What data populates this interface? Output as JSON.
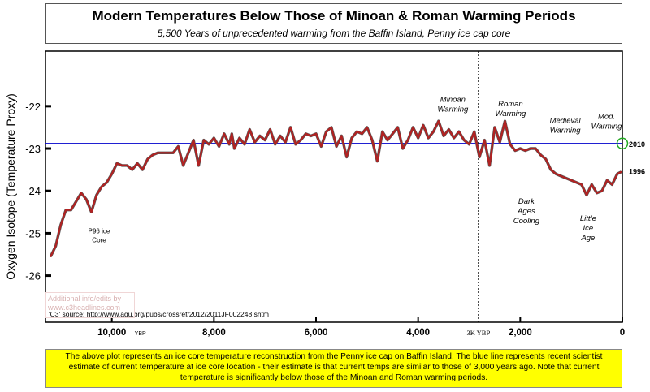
{
  "title": "Modern Temperatures Below Those of Minoan & Roman Warming Periods",
  "subtitle": "5,500 Years of unprecedented warming from the Baffin Island, Penny ice cap core",
  "footer_text": "The above plot represents an ice core temperature reconstruction from the Penny ice cap on Baffin Island. The blue line represents recent scientist estimate of current temperature at ice core location - their estimate is that current temps are similar to those of 3,000 years ago. Note that current temperature is significantly below those of the Minoan and Roman warming periods.",
  "watermark_text": "Additional info/edits by www.c3headlines.com",
  "colors": {
    "series": "#b22222",
    "reference_line": "#0000cc",
    "marker": "#22aa22",
    "footer_bg": "#ffff00"
  },
  "chart_data": {
    "type": "line",
    "title": "Modern Temperatures Below Those of Minoan & Roman Warming Periods",
    "subtitle": "5,500 Years of unprecedented warming from the Baffin Island, Penny ice cap core",
    "xlabel": "",
    "ylabel": "Oxygen Isotope (Temperature Proxy)",
    "x_unit_label": "YBP",
    "x_reversed": true,
    "xlim": [
      11300,
      0
    ],
    "ylim": [
      -27.1,
      -20.7
    ],
    "x_ticks": [
      {
        "value": 10000,
        "label": "10,000"
      },
      {
        "value": 8000,
        "label": "8,000"
      },
      {
        "value": 6000,
        "label": "6,000"
      },
      {
        "value": 4000,
        "label": "4,000"
      },
      {
        "value": 2000,
        "label": "2,000"
      },
      {
        "value": 0,
        "label": "0"
      }
    ],
    "y_ticks": [
      {
        "value": -22,
        "label": "-22"
      },
      {
        "value": -23,
        "label": "-23"
      },
      {
        "value": -24,
        "label": "-24"
      },
      {
        "value": -25,
        "label": "-25"
      },
      {
        "value": -26,
        "label": "-26"
      }
    ],
    "grid": false,
    "reference_line": {
      "y": -22.88,
      "label": "2010"
    },
    "vertical_marker": {
      "x": 2820,
      "label": "3K YBP"
    },
    "end_label": "1996",
    "source_note": "'C3' source: http://www.agu.org/pubs/crossref/2012/2011JF002248.shtm",
    "annotations": [
      {
        "text": "Minoan Warming",
        "x": 3320,
        "y": -21.9
      },
      {
        "text": "Roman Warming",
        "x": 2190,
        "y": -22.0
      },
      {
        "text": "Medieval Warming",
        "x": 1120,
        "y": -22.4
      },
      {
        "text": "Mod. Warming",
        "x": 310,
        "y": -22.3
      },
      {
        "text": "Dark Ages Cooling",
        "x": 1880,
        "y": -24.3
      },
      {
        "text": "Little Ice Age",
        "x": 670,
        "y": -24.7
      },
      {
        "text": "P96 ice Core",
        "x": 10250,
        "y": -25.0
      }
    ],
    "series": [
      {
        "x": [
          11200,
          11100,
          11000,
          10900,
          10800,
          10700,
          10600,
          10500,
          10400,
          10300,
          10200,
          10100,
          10000,
          9900,
          9800,
          9700,
          9600,
          9500,
          9400,
          9300,
          9200,
          9100,
          9000,
          8900,
          8800,
          8700,
          8600,
          8500,
          8400,
          8300,
          8200,
          8100,
          8000,
          7900,
          7800,
          7700,
          7650,
          7600,
          7500,
          7400,
          7300,
          7200,
          7100,
          7000,
          6900,
          6800,
          6700,
          6600,
          6500,
          6400,
          6300,
          6200,
          6100,
          6000,
          5900,
          5800,
          5700,
          5600,
          5500,
          5400,
          5300,
          5200,
          5100,
          5000,
          4900,
          4800,
          4700,
          4600,
          4500,
          4400,
          4300,
          4200,
          4100,
          4000,
          3900,
          3800,
          3700,
          3600,
          3500,
          3400,
          3300,
          3200,
          3100,
          3000,
          2900,
          2800,
          2700,
          2600,
          2500,
          2400,
          2300,
          2200,
          2100,
          2000,
          1900,
          1800,
          1700,
          1600,
          1500,
          1400,
          1300,
          1200,
          1100,
          1000,
          900,
          800,
          700,
          600,
          500,
          400,
          300,
          200,
          100,
          20
        ],
        "values": [
          -25.55,
          -25.3,
          -24.8,
          -24.45,
          -24.45,
          -24.25,
          -24.05,
          -24.2,
          -24.5,
          -24.1,
          -23.9,
          -23.8,
          -23.6,
          -23.35,
          -23.4,
          -23.4,
          -23.5,
          -23.35,
          -23.5,
          -23.25,
          -23.15,
          -23.1,
          -23.1,
          -23.1,
          -23.1,
          -22.95,
          -23.4,
          -23.1,
          -22.8,
          -23.4,
          -22.8,
          -22.9,
          -22.75,
          -22.95,
          -22.65,
          -22.9,
          -22.65,
          -23.0,
          -22.75,
          -22.9,
          -22.55,
          -22.85,
          -22.7,
          -22.8,
          -22.55,
          -22.9,
          -22.7,
          -22.85,
          -22.5,
          -22.9,
          -22.8,
          -22.65,
          -22.7,
          -22.65,
          -22.95,
          -22.6,
          -22.5,
          -22.95,
          -22.7,
          -23.2,
          -22.75,
          -22.6,
          -22.65,
          -22.5,
          -22.8,
          -23.3,
          -22.6,
          -22.8,
          -22.65,
          -22.5,
          -23.0,
          -22.8,
          -22.5,
          -22.75,
          -22.45,
          -22.75,
          -22.6,
          -22.35,
          -22.7,
          -22.55,
          -22.75,
          -22.6,
          -22.8,
          -22.9,
          -22.6,
          -23.2,
          -22.8,
          -23.4,
          -22.5,
          -22.85,
          -22.35,
          -22.9,
          -23.05,
          -23.0,
          -23.05,
          -23.0,
          -23.0,
          -23.15,
          -23.25,
          -23.5,
          -23.6,
          -23.65,
          -23.7,
          -23.75,
          -23.8,
          -23.85,
          -24.1,
          -23.85,
          -24.05,
          -24.0,
          -23.75,
          -23.85,
          -23.6,
          -23.55
        ]
      }
    ]
  }
}
